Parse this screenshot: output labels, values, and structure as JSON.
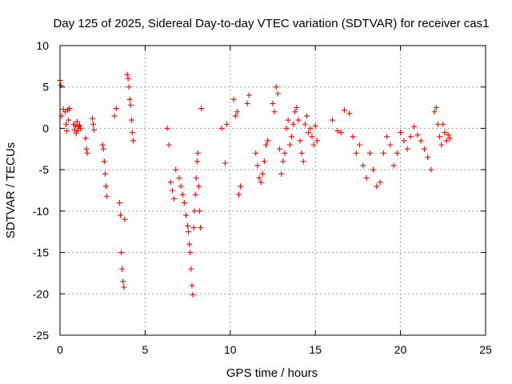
{
  "chart_data": {
    "type": "scatter",
    "title": "Day 125 of 2025, Sidereal Day-to-day VTEC variation (SDTVAR) for receiver cas1",
    "xlabel": "GPS time / hours",
    "ylabel": "SDTVAR / TECUs",
    "xlim": [
      0,
      25
    ],
    "ylim": [
      -25,
      10
    ],
    "xticks": [
      0,
      5,
      10,
      15,
      20,
      25
    ],
    "yticks": [
      10,
      5,
      0,
      -5,
      -10,
      -15,
      -20,
      -25
    ],
    "grid": true,
    "marker": "+",
    "color": "#ff0000",
    "series": [
      {
        "name": "SDTVAR",
        "x": [
          0.0,
          0.05,
          0.1,
          0.2,
          0.3,
          0.35,
          0.4,
          0.45,
          0.5,
          0.55,
          0.8,
          0.85,
          0.9,
          0.95,
          1.0,
          1.05,
          1.1,
          1.15,
          1.2,
          1.5,
          1.55,
          1.6,
          1.9,
          1.95,
          2.0,
          2.5,
          2.55,
          2.6,
          2.65,
          2.7,
          2.75,
          3.2,
          3.3,
          3.5,
          3.55,
          3.6,
          3.65,
          3.7,
          3.75,
          3.8,
          3.95,
          4.0,
          4.05,
          4.1,
          4.15,
          4.2,
          4.25,
          4.3,
          6.3,
          6.4,
          6.5,
          6.6,
          6.7,
          6.8,
          7.0,
          7.1,
          7.2,
          7.3,
          7.4,
          7.5,
          7.55,
          7.6,
          7.65,
          7.7,
          7.75,
          7.8,
          7.85,
          7.9,
          7.95,
          8.0,
          8.05,
          8.1,
          8.15,
          8.2,
          8.25,
          8.3,
          9.5,
          9.7,
          9.8,
          10.2,
          10.3,
          10.4,
          10.5,
          10.6,
          11.0,
          11.1,
          11.5,
          11.6,
          11.7,
          11.8,
          11.9,
          12.0,
          12.1,
          12.2,
          12.5,
          12.6,
          12.7,
          12.8,
          12.9,
          13.0,
          13.1,
          13.2,
          13.3,
          13.4,
          13.5,
          13.6,
          13.7,
          13.8,
          13.9,
          14.0,
          14.1,
          14.2,
          14.3,
          14.4,
          14.5,
          14.6,
          14.7,
          14.8,
          14.9,
          15.0,
          15.1,
          16.0,
          16.3,
          16.5,
          16.7,
          17.0,
          17.2,
          17.4,
          17.6,
          17.8,
          18.0,
          18.2,
          18.4,
          18.6,
          18.8,
          19.0,
          19.2,
          19.4,
          19.6,
          19.8,
          20.0,
          20.2,
          20.4,
          20.6,
          20.8,
          21.0,
          21.2,
          21.4,
          21.6,
          21.8,
          22.0,
          22.1,
          22.2,
          22.3,
          22.4,
          22.5,
          22.6,
          22.7,
          22.8,
          22.9
        ],
        "y": [
          5.8,
          5.2,
          1.5,
          2.3,
          2.0,
          0.5,
          -0.3,
          2.2,
          1.0,
          2.4,
          0.5,
          -0.2,
          0.3,
          -0.6,
          0.8,
          -0.3,
          0.2,
          0.4,
          0.0,
          -1.2,
          -2.5,
          -3.0,
          1.2,
          0.5,
          -0.2,
          -2.0,
          -2.5,
          -4.0,
          -5.5,
          -7.0,
          -8.2,
          1.5,
          2.4,
          -9.0,
          -10.5,
          -15.0,
          -17.0,
          -18.5,
          -19.2,
          -11.0,
          6.5,
          6.0,
          5.0,
          3.5,
          2.8,
          1.0,
          -0.5,
          -1.5,
          0.0,
          -2.0,
          -6.5,
          -7.5,
          -8.5,
          -5.0,
          -6.0,
          -7.0,
          -8.0,
          -9.0,
          -10.5,
          -11.8,
          -12.5,
          -14.0,
          -15.0,
          -17.0,
          -19.0,
          -20.1,
          -12.0,
          -10.0,
          -8.0,
          -6.0,
          -4.0,
          -3.0,
          -7.0,
          -10.0,
          -12.0,
          2.4,
          0.0,
          -4.2,
          0.5,
          3.5,
          1.5,
          2.0,
          -8.0,
          -7.0,
          3.0,
          4.0,
          -3.0,
          -4.5,
          -6.0,
          -6.5,
          -5.5,
          -4.0,
          -2.0,
          -1.5,
          3.0,
          2.0,
          5.0,
          4.2,
          -2.5,
          -5.5,
          -4.0,
          -3.0,
          0.0,
          1.0,
          -2.0,
          -1.0,
          0.5,
          2.0,
          2.5,
          1.0,
          -1.5,
          -3.0,
          -4.0,
          0.5,
          1.5,
          -0.5,
          0.0,
          -1.0,
          -2.0,
          0.3,
          -1.5,
          1.0,
          -0.3,
          -0.5,
          2.2,
          1.8,
          -1.0,
          -3.0,
          -2.0,
          -4.5,
          -6.0,
          -3.0,
          -5.0,
          -7.0,
          -6.5,
          -3.0,
          -1.0,
          -2.0,
          -4.5,
          -3.0,
          -0.5,
          -1.5,
          -2.5,
          -1.0,
          0.2,
          -0.8,
          -1.5,
          -2.5,
          -3.5,
          -5.0,
          2.0,
          2.5,
          0.5,
          -1.0,
          -2.0,
          0.5,
          -0.5,
          -1.5,
          -0.8,
          -1.2
        ]
      }
    ]
  }
}
